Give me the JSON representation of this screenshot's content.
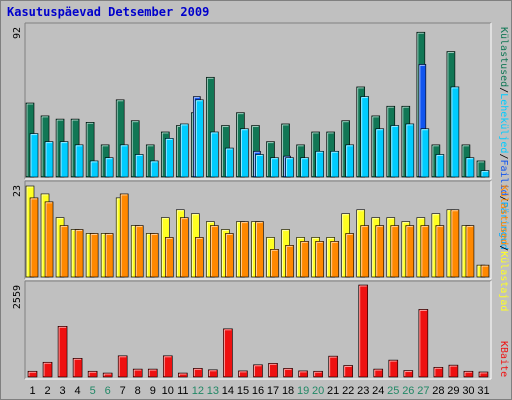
{
  "title": "Kasutuspäevad Detsember 2009",
  "colors": {
    "visits": "#117755",
    "pages": "#00ccff",
    "hits": "#1155ee",
    "files": "#00aaff",
    "hosts_a": "#ffff22",
    "hosts_b": "#ff8800",
    "bytes": "#ee1111",
    "weekend_label": "#228866",
    "weekday_label": "#000000",
    "panel_bg": "#c0c0c0"
  },
  "chart_data": [
    {
      "type": "bar",
      "ymax_label": "92",
      "right_legend": [
        "Külastused",
        "Leheküljed",
        "Failid",
        "Päringud"
      ],
      "x": [
        "1",
        "2",
        "3",
        "4",
        "5",
        "6",
        "7",
        "8",
        "9",
        "10",
        "11",
        "12",
        "13",
        "14",
        "15",
        "16",
        "17",
        "18",
        "19",
        "20",
        "21",
        "22",
        "23",
        "24",
        "25",
        "26",
        "27",
        "28",
        "29",
        "30",
        "31"
      ],
      "weekend": [
        false,
        false,
        false,
        false,
        true,
        true,
        false,
        false,
        false,
        false,
        false,
        true,
        true,
        false,
        false,
        false,
        false,
        false,
        true,
        true,
        false,
        false,
        false,
        false,
        true,
        true,
        true,
        false,
        false,
        false,
        false
      ],
      "series": [
        {
          "name": "Külastused",
          "values": [
            46,
            38,
            36,
            36,
            34,
            20,
            48,
            35,
            20,
            28,
            32,
            40,
            62,
            32,
            40,
            32,
            22,
            33,
            20,
            28,
            28,
            35,
            56,
            38,
            44,
            44,
            90,
            20,
            78,
            20,
            10
          ]
        },
        {
          "name": "Leheküljed",
          "values": [
            27,
            22,
            22,
            20,
            10,
            12,
            20,
            14,
            10,
            24,
            33,
            48,
            28,
            18,
            30,
            14,
            12,
            12,
            12,
            16,
            16,
            20,
            50,
            30,
            32,
            33,
            30,
            14,
            56,
            12,
            4
          ]
        },
        {
          "name": "Failid",
          "values": [
            27,
            22,
            22,
            20,
            10,
            12,
            20,
            14,
            10,
            24,
            33,
            50,
            28,
            18,
            30,
            16,
            12,
            13,
            12,
            16,
            16,
            20,
            50,
            30,
            32,
            33,
            70,
            14,
            56,
            12,
            4
          ]
        },
        {
          "name": "Päringud",
          "values": [
            27,
            22,
            22,
            20,
            10,
            12,
            20,
            14,
            10,
            24,
            33,
            48,
            28,
            18,
            30,
            14,
            12,
            12,
            12,
            16,
            16,
            20,
            50,
            30,
            32,
            33,
            30,
            14,
            56,
            12,
            4
          ]
        }
      ]
    },
    {
      "type": "bar",
      "ymax_label": "23",
      "right_legend": [
        "Külastused",
        "Külastajad"
      ],
      "x": [
        "1",
        "2",
        "3",
        "4",
        "5",
        "6",
        "7",
        "8",
        "9",
        "10",
        "11",
        "12",
        "13",
        "14",
        "15",
        "16",
        "17",
        "18",
        "19",
        "20",
        "21",
        "22",
        "23",
        "24",
        "25",
        "26",
        "27",
        "28",
        "29",
        "30",
        "31"
      ],
      "series": [
        {
          "name": "Külastused",
          "values": [
            23,
            21,
            15,
            12,
            11,
            11,
            20,
            13,
            11,
            15,
            17,
            16,
            14,
            12,
            14,
            14,
            10,
            12,
            10,
            10,
            10,
            16,
            17,
            15,
            15,
            14,
            15,
            16,
            17,
            13,
            3
          ]
        },
        {
          "name": "Külastajad",
          "values": [
            20,
            19,
            13,
            12,
            11,
            11,
            21,
            13,
            11,
            10,
            15,
            10,
            13,
            11,
            14,
            14,
            7,
            8,
            9,
            9,
            9,
            11,
            13,
            13,
            13,
            13,
            13,
            13,
            17,
            13,
            3
          ]
        }
      ]
    },
    {
      "type": "bar",
      "ymax_label": "2559",
      "right_legend": [
        "KBaite"
      ],
      "x": [
        "1",
        "2",
        "3",
        "4",
        "5",
        "6",
        "7",
        "8",
        "9",
        "10",
        "11",
        "12",
        "13",
        "14",
        "15",
        "16",
        "17",
        "18",
        "19",
        "20",
        "21",
        "22",
        "23",
        "24",
        "25",
        "26",
        "27",
        "28",
        "29",
        "30",
        "31"
      ],
      "series": [
        {
          "name": "KBaite",
          "values": [
            160,
            410,
            1410,
            520,
            160,
            110,
            590,
            220,
            220,
            590,
            110,
            240,
            200,
            1340,
            170,
            340,
            380,
            240,
            170,
            160,
            580,
            320,
            2559,
            220,
            470,
            180,
            1880,
            270,
            330,
            160,
            140
          ]
        }
      ]
    }
  ]
}
